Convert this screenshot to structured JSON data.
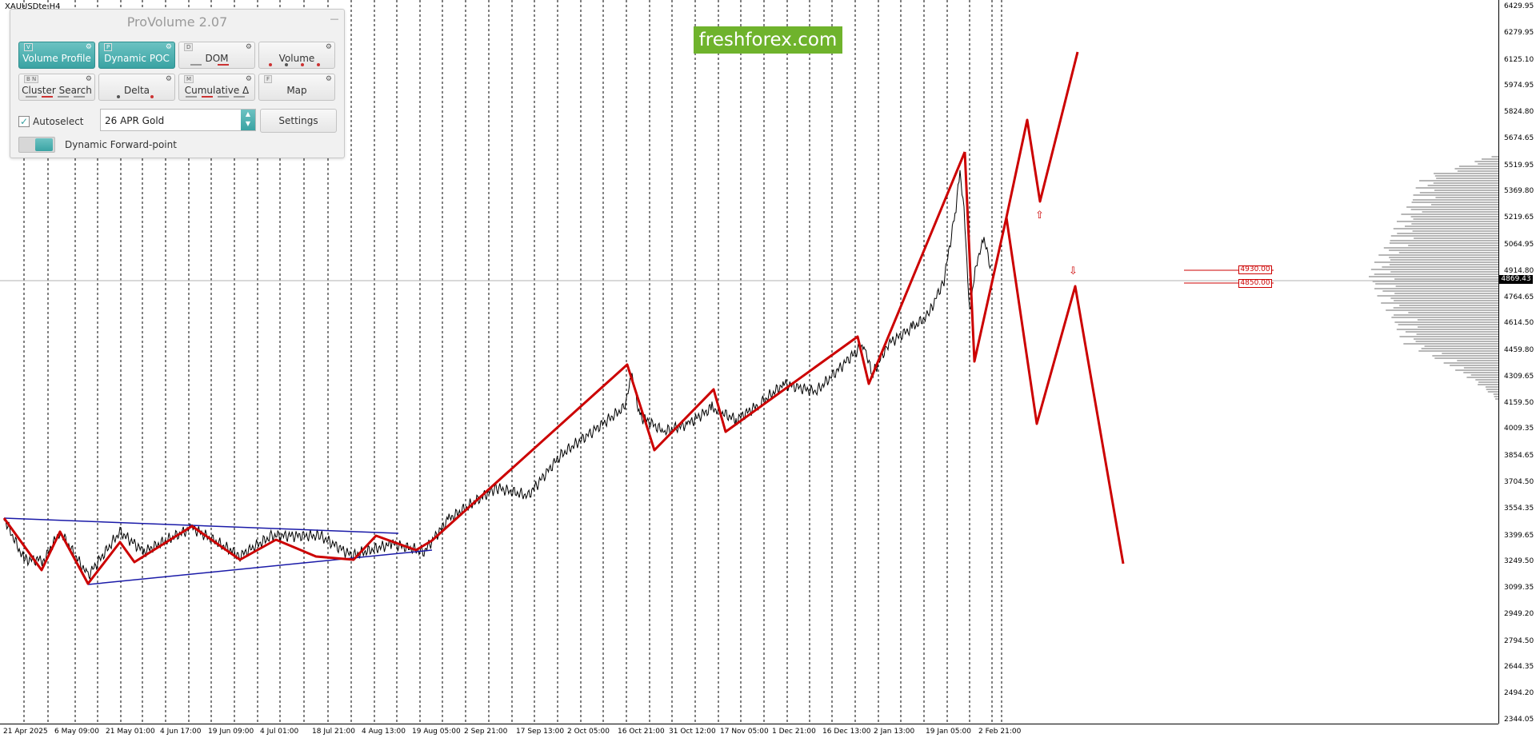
{
  "symbol": "XAUUSDte,H4",
  "brand": "freshforex.com",
  "colors": {
    "forecast_line": "#cc0000",
    "trend_line": "#1a1aa8",
    "price_series": "#000000",
    "accent": "#3aa3a3",
    "brand_bg": "#6fb32c"
  },
  "panel": {
    "title": "ProVolume 2.07",
    "modules": [
      {
        "label": "Volume Profile",
        "key": "V",
        "active": true,
        "icon": "gear-icon"
      },
      {
        "label": "Dynamic POC",
        "key": "P",
        "active": true,
        "icon": "gear-icon"
      },
      {
        "label": "DOM",
        "key": "D",
        "active": false,
        "icon": "gear-icon"
      },
      {
        "label": "Volume",
        "key": "",
        "active": false,
        "icon": "gear-icon"
      },
      {
        "label": "Cluster Search",
        "key": "B N",
        "active": false,
        "icon": "gear-icon"
      },
      {
        "label": "Delta",
        "key": "",
        "active": false,
        "icon": "gear-icon"
      },
      {
        "label": "Cumulative Δ",
        "key": "M",
        "active": false,
        "icon": "gear-icon"
      },
      {
        "label": "Map",
        "key": "F",
        "active": false,
        "icon": "gear-icon"
      }
    ],
    "autoselect_label": "Autoselect",
    "autoselect_checked": true,
    "instrument": "26 APR Gold",
    "settings_label": "Settings",
    "forward_point_label": "Dynamic Forward-point"
  },
  "price_axis": [
    "6429.95",
    "6279.95",
    "6125.10",
    "5974.95",
    "5824.80",
    "5674.65",
    "5519.95",
    "5369.80",
    "5219.65",
    "5064.95",
    "4914.80",
    "4764.65",
    "4614.50",
    "4459.80",
    "4309.65",
    "4159.50",
    "4009.35",
    "3854.65",
    "3704.50",
    "3554.35",
    "3399.65",
    "3249.50",
    "3099.35",
    "2949.20",
    "2794.50",
    "2644.35",
    "2494.20",
    "2344.05"
  ],
  "current_price": "4869.43",
  "levels": [
    "4930.00",
    "4850.00"
  ],
  "time_axis": [
    "21 Apr 2025",
    "6 May 09:00",
    "21 May 01:00",
    "4 Jun 17:00",
    "19 Jun 09:00",
    "4 Jul 01:00",
    "18 Jul 21:00",
    "4 Aug 13:00",
    "19 Aug 05:00",
    "2 Sep 21:00",
    "17 Sep 13:00",
    "2 Oct 05:00",
    "16 Oct 21:00",
    "31 Oct 12:00",
    "17 Nov 05:00",
    "1 Dec 21:00",
    "16 Dec 13:00",
    "2 Jan 13:00",
    "19 Jan 05:00",
    "2 Feb 21:00"
  ],
  "chart_data": {
    "type": "line",
    "title": "",
    "xlabel": "",
    "ylabel": "",
    "ylim": [
      2344.05,
      6429.95
    ],
    "x": [
      "21 Apr 2025",
      "6 May 09:00",
      "21 May 01:00",
      "4 Jun 17:00",
      "19 Jun 09:00",
      "4 Jul 01:00",
      "18 Jul 21:00",
      "4 Aug 13:00",
      "19 Aug 05:00",
      "2 Sep 21:00",
      "17 Sep 13:00",
      "2 Oct 05:00",
      "16 Oct 21:00",
      "31 Oct 12:00",
      "17 Nov 05:00",
      "1 Dec 21:00",
      "16 Dec 13:00",
      "2 Jan 13:00",
      "19 Jan 05:00",
      "2 Feb 21:00"
    ],
    "series": [
      {
        "values": [
          3420,
          3310,
          3290,
          3390,
          3320,
          3340,
          3380,
          3400,
          3340,
          3650,
          3720,
          3950,
          4350,
          4000,
          4080,
          4200,
          4450,
          4400,
          4700,
          4850
        ]
      }
    ]
  }
}
